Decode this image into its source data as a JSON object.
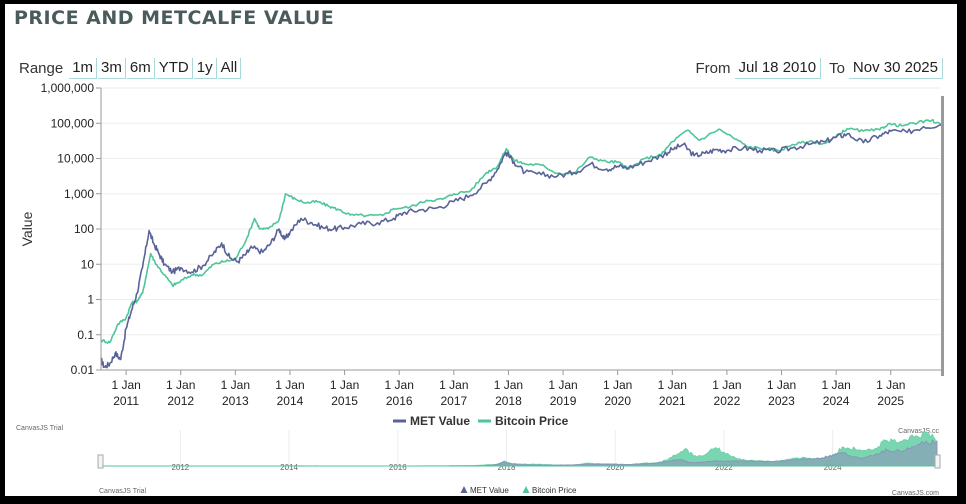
{
  "page": {
    "title": "PRICE AND METCALFE VALUE"
  },
  "range_selector": {
    "label": "Range",
    "buttons": [
      "1m",
      "3m",
      "6m",
      "YTD",
      "1y",
      "All"
    ]
  },
  "date_range": {
    "from_label": "From",
    "from_value": "Jul 18 2010",
    "to_label": "To",
    "to_value": "Nov 30 2025"
  },
  "chart_data": {
    "type": "line",
    "title": "PRICE AND METCALFE VALUE",
    "ylabel": "Value",
    "yscale": "log",
    "ylim": [
      0.01,
      1000000
    ],
    "y_ticks": [
      0.01,
      0.1,
      1,
      10,
      100,
      1000,
      10000,
      100000,
      1000000
    ],
    "y_tick_labels": [
      "0.01",
      "0.1",
      "1",
      "10",
      "100",
      "1,000",
      "10,000",
      "100,000",
      "1,000,000"
    ],
    "xlim": [
      2010.54,
      2025.92
    ],
    "x_ticks": [
      2011,
      2012,
      2013,
      2014,
      2015,
      2016,
      2017,
      2018,
      2019,
      2020,
      2021,
      2022,
      2023,
      2024,
      2025
    ],
    "x_tick_labels": [
      "1 Jan 2011",
      "1 Jan 2012",
      "1 Jan 2013",
      "1 Jan 2014",
      "1 Jan 2015",
      "1 Jan 2016",
      "1 Jan 2017",
      "1 Jan 2018",
      "1 Jan 2019",
      "1 Jan 2020",
      "1 Jan 2021",
      "1 Jan 2022",
      "1 Jan 2023",
      "1 Jan 2024",
      "1 Jan 2025"
    ],
    "series": [
      {
        "name": "MET Value",
        "color": "#5a6399",
        "points": [
          [
            2010.54,
            0.02
          ],
          [
            2010.6,
            0.012
          ],
          [
            2010.7,
            0.015
          ],
          [
            2010.8,
            0.03
          ],
          [
            2010.9,
            0.02
          ],
          [
            2011.0,
            0.15
          ],
          [
            2011.1,
            0.5
          ],
          [
            2011.2,
            1.5
          ],
          [
            2011.3,
            8
          ],
          [
            2011.42,
            90
          ],
          [
            2011.5,
            40
          ],
          [
            2011.6,
            20
          ],
          [
            2011.7,
            10
          ],
          [
            2011.85,
            6
          ],
          [
            2012.0,
            8
          ],
          [
            2012.2,
            6
          ],
          [
            2012.4,
            9
          ],
          [
            2012.6,
            20
          ],
          [
            2012.75,
            40
          ],
          [
            2012.9,
            15
          ],
          [
            2013.05,
            12
          ],
          [
            2013.2,
            20
          ],
          [
            2013.3,
            30
          ],
          [
            2013.5,
            22
          ],
          [
            2013.65,
            40
          ],
          [
            2013.8,
            100
          ],
          [
            2013.9,
            50
          ],
          [
            2014.0,
            80
          ],
          [
            2014.2,
            200
          ],
          [
            2014.4,
            150
          ],
          [
            2014.6,
            110
          ],
          [
            2014.8,
            100
          ],
          [
            2015.0,
            110
          ],
          [
            2015.3,
            140
          ],
          [
            2015.6,
            150
          ],
          [
            2015.9,
            200
          ],
          [
            2016.1,
            300
          ],
          [
            2016.4,
            350
          ],
          [
            2016.7,
            400
          ],
          [
            2017.0,
            600
          ],
          [
            2017.3,
            900
          ],
          [
            2017.6,
            2000
          ],
          [
            2017.8,
            5000
          ],
          [
            2017.95,
            15000
          ],
          [
            2018.1,
            8000
          ],
          [
            2018.3,
            4000
          ],
          [
            2018.6,
            3500
          ],
          [
            2018.9,
            3200
          ],
          [
            2019.2,
            4000
          ],
          [
            2019.5,
            7000
          ],
          [
            2019.8,
            5000
          ],
          [
            2020.0,
            6000
          ],
          [
            2020.2,
            5500
          ],
          [
            2020.5,
            8000
          ],
          [
            2020.8,
            12000
          ],
          [
            2021.0,
            18000
          ],
          [
            2021.2,
            25000
          ],
          [
            2021.4,
            12000
          ],
          [
            2021.6,
            14000
          ],
          [
            2021.8,
            18000
          ],
          [
            2022.0,
            17000
          ],
          [
            2022.3,
            20000
          ],
          [
            2022.6,
            17000
          ],
          [
            2022.9,
            16000
          ],
          [
            2023.2,
            20000
          ],
          [
            2023.5,
            25000
          ],
          [
            2023.8,
            30000
          ],
          [
            2024.0,
            40000
          ],
          [
            2024.2,
            50000
          ],
          [
            2024.5,
            28000
          ],
          [
            2024.8,
            45000
          ],
          [
            2025.0,
            60000
          ],
          [
            2025.3,
            55000
          ],
          [
            2025.6,
            80000
          ],
          [
            2025.92,
            90000
          ]
        ]
      },
      {
        "name": "Bitcoin Price",
        "color": "#4fc59a",
        "points": [
          [
            2010.54,
            0.07
          ],
          [
            2010.7,
            0.06
          ],
          [
            2010.85,
            0.2
          ],
          [
            2011.0,
            0.3
          ],
          [
            2011.1,
            0.8
          ],
          [
            2011.2,
            0.9
          ],
          [
            2011.3,
            1.5
          ],
          [
            2011.45,
            20
          ],
          [
            2011.55,
            10
          ],
          [
            2011.7,
            5
          ],
          [
            2011.85,
            2.5
          ],
          [
            2011.95,
            3
          ],
          [
            2012.2,
            5
          ],
          [
            2012.4,
            5
          ],
          [
            2012.6,
            10
          ],
          [
            2012.8,
            12
          ],
          [
            2013.0,
            14
          ],
          [
            2013.2,
            50
          ],
          [
            2013.35,
            200
          ],
          [
            2013.45,
            100
          ],
          [
            2013.6,
            100
          ],
          [
            2013.8,
            180
          ],
          [
            2013.92,
            1000
          ],
          [
            2014.1,
            700
          ],
          [
            2014.3,
            550
          ],
          [
            2014.5,
            600
          ],
          [
            2014.7,
            450
          ],
          [
            2014.9,
            350
          ],
          [
            2015.1,
            250
          ],
          [
            2015.4,
            240
          ],
          [
            2015.7,
            240
          ],
          [
            2015.9,
            380
          ],
          [
            2016.2,
            420
          ],
          [
            2016.5,
            650
          ],
          [
            2016.8,
            700
          ],
          [
            2017.0,
            1000
          ],
          [
            2017.3,
            1200
          ],
          [
            2017.6,
            4000
          ],
          [
            2017.8,
            6000
          ],
          [
            2017.96,
            19000
          ],
          [
            2018.1,
            9000
          ],
          [
            2018.3,
            7000
          ],
          [
            2018.6,
            6500
          ],
          [
            2018.9,
            3800
          ],
          [
            2019.2,
            3800
          ],
          [
            2019.5,
            11000
          ],
          [
            2019.8,
            8000
          ],
          [
            2020.0,
            8000
          ],
          [
            2020.2,
            5000
          ],
          [
            2020.5,
            10000
          ],
          [
            2020.8,
            13000
          ],
          [
            2021.0,
            30000
          ],
          [
            2021.28,
            63000
          ],
          [
            2021.5,
            33000
          ],
          [
            2021.85,
            68000
          ],
          [
            2022.1,
            40000
          ],
          [
            2022.4,
            21000
          ],
          [
            2022.7,
            19000
          ],
          [
            2022.95,
            16500
          ],
          [
            2023.2,
            25000
          ],
          [
            2023.5,
            30000
          ],
          [
            2023.8,
            27000
          ],
          [
            2024.0,
            42000
          ],
          [
            2024.2,
            70000
          ],
          [
            2024.5,
            60000
          ],
          [
            2024.8,
            65000
          ],
          [
            2024.95,
            95000
          ],
          [
            2025.2,
            85000
          ],
          [
            2025.5,
            105000
          ],
          [
            2025.75,
            120000
          ],
          [
            2025.92,
            92000
          ]
        ]
      }
    ],
    "legend": [
      "MET Value",
      "Bitcoin Price"
    ],
    "legend_position": "bottom-center",
    "navigator": {
      "labels": [
        "2012",
        "2014",
        "2016",
        "2018",
        "2020",
        "2022",
        "2024"
      ],
      "legend": [
        "MET Value",
        "Bitcoin Price"
      ]
    },
    "credits": {
      "trial_label": "CanvasJS Trial",
      "brand_label": "CanvasJS.com",
      "brand_short": "CanvasJS.cc"
    }
  }
}
